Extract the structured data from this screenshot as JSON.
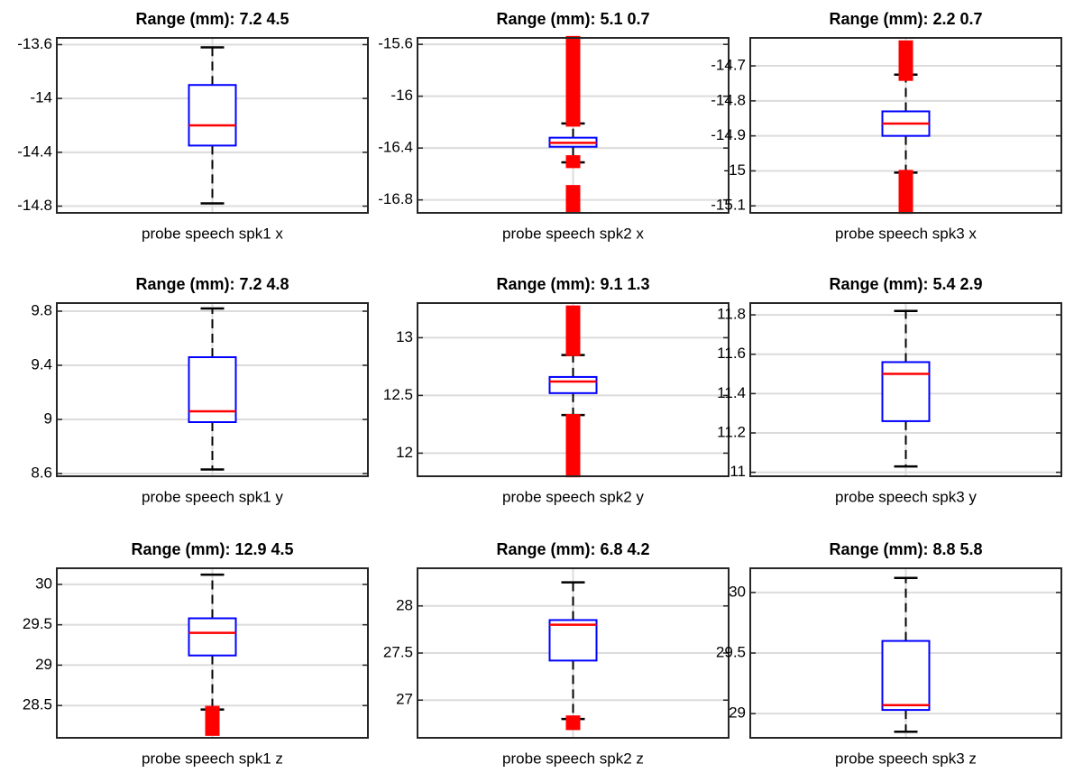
{
  "chart_data": [
    {
      "type": "box",
      "title": "Range (mm): 7.2 4.5",
      "categories": [
        "probe speech spk1 x"
      ],
      "ylim": [
        -14.85,
        -13.55
      ],
      "yticks": [
        -14.8,
        -14.4,
        -14,
        -13.6
      ],
      "grid": true,
      "stats": {
        "whislo": -14.78,
        "q1": -14.35,
        "med": -14.2,
        "q3": -13.9,
        "whishi": -13.62,
        "fliers": []
      },
      "box_color": "#0000ff",
      "median_color": "#ff0000",
      "whisker_color": "#000000",
      "flier_color": "#ff0000"
    },
    {
      "type": "box",
      "title": "Range (mm): 5.1 0.7",
      "categories": [
        "probe speech spk2 x"
      ],
      "ylim": [
        -16.9,
        -15.55
      ],
      "yticks": [
        -16.8,
        -16.4,
        -16,
        -15.6
      ],
      "grid": true,
      "stats": {
        "whislo": -16.51,
        "q1": -16.39,
        "med": -16.36,
        "q3": -16.32,
        "whishi": -16.21,
        "fliers": [
          -16.87,
          -16.84,
          -16.81,
          -16.78,
          -16.75,
          -16.72,
          -16.52,
          -16.49,
          -16.2,
          -16.15,
          -16.1,
          -16.05,
          -16,
          -15.95,
          -15.9,
          -15.85,
          -15.8,
          -15.75,
          -15.7,
          -15.65,
          -15.6,
          -15.57
        ]
      },
      "box_color": "#0000ff",
      "median_color": "#ff0000",
      "whisker_color": "#000000",
      "flier_color": "#ff0000"
    },
    {
      "type": "box",
      "title": "Range (mm): 2.2 0.7",
      "categories": [
        "probe speech spk3 x"
      ],
      "ylim": [
        -15.12,
        -14.62
      ],
      "yticks": [
        -15.1,
        -15,
        -14.9,
        -14.8,
        -14.7
      ],
      "grid": true,
      "stats": {
        "whislo": -15.005,
        "q1": -14.9,
        "med": -14.865,
        "q3": -14.83,
        "whishi": -14.725,
        "fliers": [
          -15.11,
          -15.09,
          -15.07,
          -15.05,
          -15.03,
          -15.01,
          -14.73,
          -14.71,
          -14.69,
          -14.67,
          -14.65,
          -14.64
        ]
      },
      "box_color": "#0000ff",
      "median_color": "#ff0000",
      "whisker_color": "#000000",
      "flier_color": "#ff0000"
    },
    {
      "type": "box",
      "title": "Range (mm): 7.2 4.8",
      "categories": [
        "probe speech spk1 y"
      ],
      "ylim": [
        8.58,
        9.86
      ],
      "yticks": [
        8.6,
        9,
        9.4,
        9.8
      ],
      "grid": true,
      "stats": {
        "whislo": 8.63,
        "q1": 8.98,
        "med": 9.06,
        "q3": 9.46,
        "whishi": 9.82,
        "fliers": []
      },
      "box_color": "#0000ff",
      "median_color": "#ff0000",
      "whisker_color": "#000000",
      "flier_color": "#ff0000"
    },
    {
      "type": "box",
      "title": "Range (mm): 9.1 1.3",
      "categories": [
        "probe speech spk2 y"
      ],
      "ylim": [
        11.8,
        13.3
      ],
      "yticks": [
        12,
        12.5,
        13
      ],
      "grid": true,
      "stats": {
        "whislo": 12.33,
        "q1": 12.52,
        "med": 12.62,
        "q3": 12.66,
        "whishi": 12.85,
        "fliers": [
          11.83,
          11.87,
          11.91,
          11.95,
          11.99,
          12.03,
          12.1,
          12.14,
          12.18,
          12.22,
          12.26,
          12.3,
          12.88,
          12.92,
          12.96,
          13,
          13.04,
          13.08,
          13.12,
          13.16,
          13.2,
          13.24
        ]
      },
      "box_color": "#0000ff",
      "median_color": "#ff0000",
      "whisker_color": "#000000",
      "flier_color": "#ff0000"
    },
    {
      "type": "box",
      "title": "Range (mm): 5.4 2.9",
      "categories": [
        "probe speech spk3 y"
      ],
      "ylim": [
        10.98,
        11.86
      ],
      "yticks": [
        11,
        11.2,
        11.4,
        11.6,
        11.8
      ],
      "grid": true,
      "stats": {
        "whislo": 11.03,
        "q1": 11.26,
        "med": 11.5,
        "q3": 11.56,
        "whishi": 11.82,
        "fliers": []
      },
      "box_color": "#0000ff",
      "median_color": "#ff0000",
      "whisker_color": "#000000",
      "flier_color": "#ff0000"
    },
    {
      "type": "box",
      "title": "Range (mm): 12.9 4.5",
      "categories": [
        "probe speech spk1 z"
      ],
      "ylim": [
        28.1,
        30.2
      ],
      "yticks": [
        28.5,
        29,
        29.5,
        30
      ],
      "grid": true,
      "stats": {
        "whislo": 28.45,
        "q1": 29.12,
        "med": 29.4,
        "q3": 29.58,
        "whishi": 30.12,
        "fliers": [
          28.18,
          28.22,
          28.26,
          28.3,
          28.35,
          28.4,
          28.44
        ]
      },
      "box_color": "#0000ff",
      "median_color": "#ff0000",
      "whisker_color": "#000000",
      "flier_color": "#ff0000"
    },
    {
      "type": "box",
      "title": "Range (mm): 6.8 4.2",
      "categories": [
        "probe speech spk2 z"
      ],
      "ylim": [
        26.6,
        28.4
      ],
      "yticks": [
        27,
        27.5,
        28
      ],
      "grid": true,
      "stats": {
        "whislo": 26.8,
        "q1": 27.42,
        "med": 27.8,
        "q3": 27.85,
        "whishi": 28.25,
        "fliers": [
          26.73,
          26.76,
          26.79
        ]
      },
      "box_color": "#0000ff",
      "median_color": "#ff0000",
      "whisker_color": "#000000",
      "flier_color": "#ff0000"
    },
    {
      "type": "box",
      "title": "Range (mm): 8.8 5.8",
      "categories": [
        "probe speech spk3 z"
      ],
      "ylim": [
        28.8,
        30.2
      ],
      "yticks": [
        29,
        29.5,
        30
      ],
      "grid": true,
      "stats": {
        "whislo": 28.85,
        "q1": 29.03,
        "med": 29.07,
        "q3": 29.6,
        "whishi": 30.12,
        "fliers": []
      },
      "box_color": "#0000ff",
      "median_color": "#ff0000",
      "whisker_color": "#000000",
      "flier_color": "#ff0000"
    }
  ]
}
